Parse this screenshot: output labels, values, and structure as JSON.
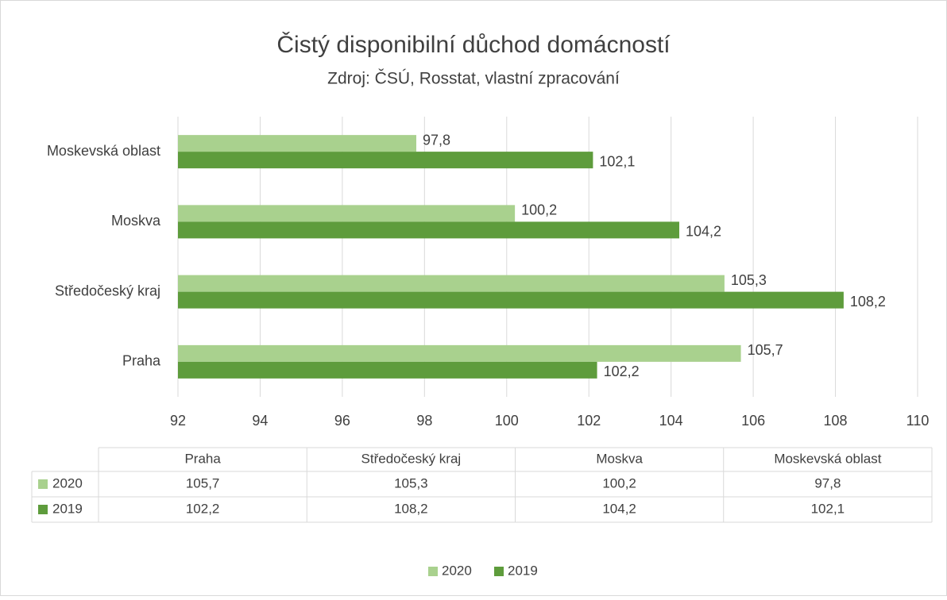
{
  "chart_data": {
    "type": "bar",
    "orientation": "horizontal",
    "title": "Čistý disponibilní důchod domácností",
    "subtitle": "Zdroj: ČSÚ, Rosstat, vlastní zpracování",
    "categories": [
      "Praha",
      "Středočeský kraj",
      "Moskva",
      "Moskevská oblast"
    ],
    "series": [
      {
        "name": "2020",
        "color": "#a9d18e",
        "values": [
          105.7,
          105.3,
          100.2,
          97.8
        ],
        "value_labels": [
          "105,7",
          "105,3",
          "100,2",
          "97,8"
        ]
      },
      {
        "name": "2019",
        "color": "#5e9c3c",
        "values": [
          102.2,
          108.2,
          104.2,
          102.1
        ],
        "value_labels": [
          "102,2",
          "108,2",
          "104,2",
          "102,1"
        ]
      }
    ],
    "xlim": [
      92,
      110
    ],
    "xticks": [
      92,
      94,
      96,
      98,
      100,
      102,
      104,
      106,
      108,
      110
    ],
    "grid": true,
    "legend": "bottom",
    "data_table": true
  }
}
